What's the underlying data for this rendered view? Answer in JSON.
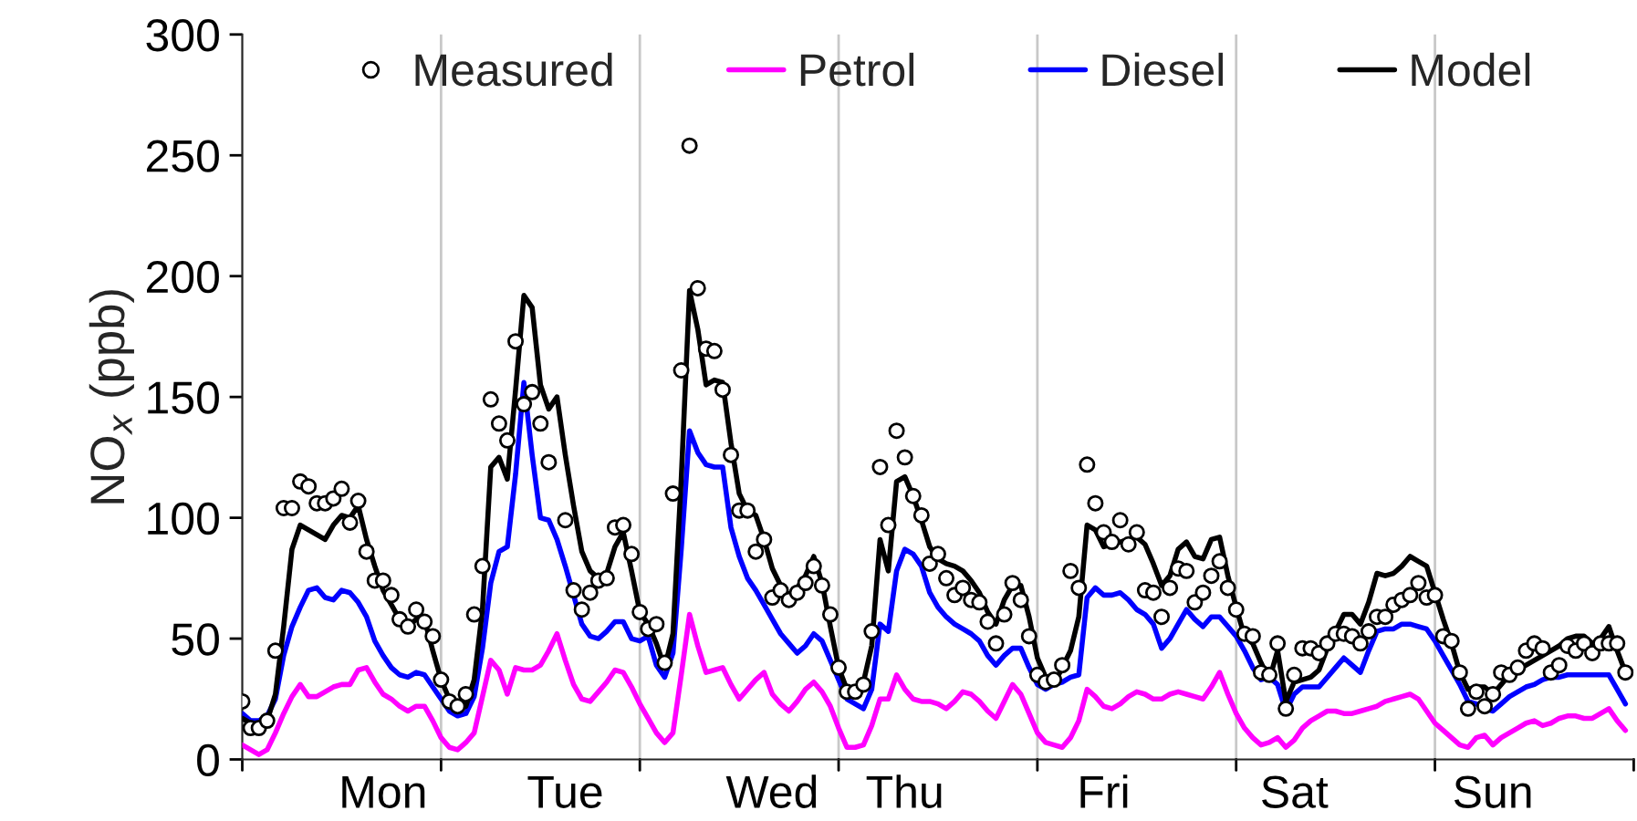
{
  "chart_data": {
    "type": "line",
    "ylabel": "NO$_{x}$ (ppb)",
    "ylim": [
      0,
      300
    ],
    "yticks": [
      0,
      50,
      100,
      150,
      200,
      250,
      300
    ],
    "categories": [
      null,
      null,
      null,
      null,
      null,
      null,
      null,
      null,
      null,
      null,
      null,
      null,
      null,
      null,
      null,
      null,
      null,
      "Mon",
      null,
      null,
      null,
      null,
      null,
      null,
      null,
      null,
      null,
      null,
      null,
      null,
      null,
      null,
      null,
      null,
      null,
      null,
      null,
      null,
      null,
      "Tue",
      null,
      null,
      null,
      null,
      null,
      null,
      null,
      null,
      null,
      null,
      null,
      null,
      null,
      null,
      null,
      null,
      null,
      null,
      null,
      null,
      null,
      null,
      null,
      null,
      "Wed",
      null,
      null,
      null,
      null,
      null,
      null,
      null,
      null,
      null,
      null,
      null,
      null,
      null,
      null,
      null,
      "Thu",
      null,
      null,
      null,
      null,
      null,
      null,
      null,
      null,
      null,
      null,
      null,
      null,
      null,
      null,
      null,
      null,
      null,
      null,
      null,
      null,
      null,
      null,
      null,
      "Fri",
      null,
      null,
      null,
      null,
      null,
      null,
      null,
      null,
      null,
      null,
      null,
      null,
      null,
      null,
      null,
      null,
      null,
      null,
      null,
      null,
      null,
      null,
      "Sat",
      null,
      null,
      null,
      null,
      null,
      null,
      null,
      null,
      null,
      null,
      null,
      null,
      null,
      null,
      null,
      null,
      null,
      null,
      null,
      null,
      null,
      null,
      null,
      "Sun",
      null,
      null,
      null,
      null,
      null,
      null,
      null,
      null,
      null,
      null,
      null,
      null,
      null,
      null,
      null,
      null
    ],
    "legend": "top",
    "series": [
      {
        "name": "Measured",
        "type": "scatter",
        "marker": "circle",
        "color": "#000000",
        "values": [
          24,
          13,
          13,
          16,
          45,
          104,
          104,
          115,
          113,
          106,
          106,
          108,
          112,
          98,
          107,
          86,
          74,
          74,
          68,
          58,
          55,
          62,
          57,
          51,
          33,
          24,
          22,
          27,
          60,
          80,
          149,
          139,
          132,
          173,
          147,
          152,
          139,
          123,
          null,
          99,
          70,
          62,
          69,
          74,
          75,
          96,
          97,
          85,
          61,
          54,
          56,
          40,
          110,
          161,
          254,
          195,
          170,
          169,
          153,
          126,
          103,
          103,
          86,
          91,
          67,
          70,
          66,
          69,
          73,
          80,
          72,
          60,
          38,
          28,
          28,
          31,
          53,
          121,
          97,
          136,
          125,
          109,
          101,
          81,
          85,
          75,
          68,
          71,
          66,
          65,
          57,
          48,
          60,
          73,
          66,
          51,
          35,
          32,
          33,
          39,
          78,
          71,
          122,
          106,
          94,
          90,
          99,
          89,
          94,
          70,
          69,
          59,
          71,
          79,
          78,
          65,
          69,
          76,
          82,
          71,
          62,
          52,
          51,
          36,
          35,
          48,
          21,
          35,
          46,
          46,
          44,
          48,
          52,
          52,
          51,
          48,
          53,
          59,
          59,
          64,
          66,
          68,
          73,
          67,
          68,
          51,
          49,
          36,
          21,
          28,
          22,
          27,
          36,
          35,
          38,
          45,
          48,
          46,
          36,
          39,
          47,
          45,
          48,
          44,
          48,
          48,
          48,
          36
        ]
      },
      {
        "name": "Petrol",
        "color": "#ff00ff",
        "values": [
          6,
          4,
          2,
          4,
          11,
          19,
          26,
          31,
          26,
          26,
          28,
          30,
          31,
          31,
          37,
          38,
          32,
          27,
          25,
          22,
          20,
          22,
          22,
          16,
          9,
          5,
          4,
          7,
          11,
          26,
          41,
          37,
          27,
          38,
          37,
          37,
          39,
          45,
          52,
          41,
          31,
          25,
          24,
          28,
          32,
          37,
          36,
          30,
          23,
          17,
          11,
          7,
          11,
          35,
          60,
          47,
          36,
          37,
          38,
          31,
          25,
          29,
          33,
          36,
          27,
          23,
          20,
          24,
          29,
          32,
          28,
          22,
          13,
          5,
          5,
          6,
          14,
          25,
          25,
          35,
          29,
          25,
          24,
          24,
          23,
          21,
          24,
          28,
          27,
          24,
          20,
          17,
          24,
          31,
          27,
          19,
          11,
          7,
          6,
          5,
          9,
          16,
          29,
          26,
          22,
          21,
          23,
          26,
          28,
          27,
          25,
          25,
          27,
          28,
          27,
          26,
          25,
          30,
          36,
          27,
          19,
          13,
          9,
          6,
          7,
          9,
          5,
          8,
          13,
          16,
          18,
          20,
          20,
          19,
          19,
          20,
          21,
          22,
          24,
          25,
          26,
          27,
          25,
          20,
          15,
          12,
          9,
          6,
          5,
          9,
          10,
          6,
          9,
          11,
          13,
          15,
          16,
          14,
          15,
          17,
          18,
          18,
          17,
          17,
          19,
          21,
          16,
          12
        ]
      },
      {
        "name": "Diesel",
        "color": "#0000ff",
        "values": [
          19,
          16,
          16,
          18,
          25,
          43,
          55,
          63,
          70,
          71,
          67,
          66,
          70,
          69,
          65,
          59,
          49,
          43,
          38,
          35,
          34,
          36,
          35,
          30,
          25,
          20,
          18,
          19,
          26,
          46,
          73,
          86,
          88,
          118,
          156,
          126,
          100,
          99,
          91,
          80,
          68,
          56,
          51,
          50,
          53,
          57,
          57,
          50,
          49,
          51,
          39,
          34,
          44,
          87,
          136,
          127,
          122,
          121,
          121,
          96,
          84,
          75,
          70,
          64,
          58,
          52,
          48,
          44,
          47,
          52,
          49,
          41,
          33,
          25,
          23,
          21,
          29,
          56,
          53,
          78,
          87,
          85,
          80,
          69,
          63,
          59,
          56,
          54,
          52,
          49,
          43,
          39,
          43,
          46,
          46,
          38,
          31,
          29,
          31,
          32,
          34,
          35,
          67,
          71,
          68,
          68,
          69,
          66,
          62,
          60,
          56,
          46,
          50,
          56,
          62,
          58,
          55,
          59,
          59,
          55,
          51,
          45,
          38,
          33,
          34,
          31,
          20,
          27,
          30,
          30,
          30,
          34,
          38,
          42,
          39,
          36,
          45,
          53,
          54,
          54,
          56,
          56,
          55,
          54,
          49,
          43,
          37,
          31,
          24,
          23,
          21,
          20,
          23,
          26,
          28,
          30,
          31,
          33,
          34,
          34,
          35,
          35,
          35,
          35,
          35,
          35,
          29,
          23
        ]
      },
      {
        "name": "Model",
        "color": "#000000",
        "values": [
          17,
          15,
          15,
          16,
          27,
          55,
          87,
          97,
          95,
          93,
          91,
          97,
          101,
          100,
          105,
          91,
          80,
          70,
          64,
          58,
          55,
          58,
          58,
          45,
          33,
          25,
          21,
          22,
          33,
          62,
          121,
          125,
          116,
          153,
          192,
          187,
          155,
          145,
          150,
          126,
          105,
          86,
          78,
          75,
          77,
          88,
          94,
          78,
          61,
          56,
          48,
          38,
          52,
          116,
          194,
          178,
          155,
          157,
          156,
          131,
          110,
          103,
          101,
          91,
          79,
          72,
          68,
          71,
          76,
          84,
          73,
          55,
          38,
          29,
          27,
          32,
          47,
          91,
          78,
          115,
          117,
          109,
          99,
          88,
          83,
          81,
          80,
          78,
          74,
          69,
          61,
          56,
          66,
          72,
          72,
          59,
          42,
          34,
          31,
          38,
          45,
          59,
          97,
          95,
          88,
          89,
          90,
          91,
          92,
          89,
          81,
          72,
          76,
          87,
          90,
          84,
          83,
          91,
          92,
          76,
          63,
          51,
          48,
          40,
          33,
          45,
          24,
          32,
          33,
          34,
          37,
          46,
          53,
          60,
          60,
          56,
          65,
          77,
          76,
          77,
          80,
          84,
          82,
          80,
          69,
          58,
          48,
          36,
          29,
          30,
          30,
          27,
          31,
          35,
          37,
          39,
          41,
          43,
          45,
          47,
          50,
          51,
          51,
          48,
          50,
          55,
          45,
          36
        ]
      }
    ]
  }
}
